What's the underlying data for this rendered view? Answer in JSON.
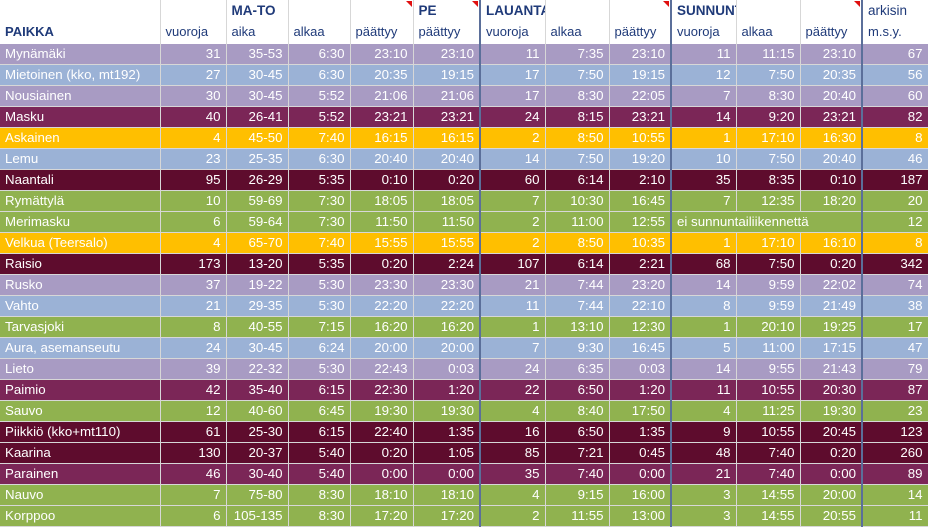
{
  "header": {
    "row1": [
      "",
      "",
      "MA-TO",
      "",
      "",
      "PE",
      "LAUANTAI",
      "",
      "",
      "SUNNUNTAI",
      "",
      "",
      "arkisin"
    ],
    "row2": [
      "PAIKKA",
      "vuoroja",
      "aika",
      "alkaa",
      "päättyy",
      "päättyy",
      "vuoroja",
      "alkaa",
      "päättyy",
      "vuoroja",
      "alkaa",
      "päättyy",
      "m.s.y."
    ]
  },
  "colors": {
    "lavender": "#a89bc3",
    "blue": "#9bb2d6",
    "plum": "#7b2657",
    "orange": "#ffbf00",
    "maroon": "#5e0c2d",
    "green": "#90b24f",
    "header_text": "#1f3a79"
  },
  "rows": [
    {
      "color": "lavender",
      "cells": [
        "Mynämäki",
        "31",
        "35-53",
        "6:30",
        "23:10",
        "23:10",
        "11",
        "7:35",
        "23:10",
        "11",
        "11:15",
        "23:10",
        "67"
      ]
    },
    {
      "color": "blue",
      "cells": [
        "Mietoinen (kko, mt192)",
        "27",
        "30-45",
        "6:30",
        "20:35",
        "19:15",
        "17",
        "7:50",
        "19:15",
        "12",
        "7:50",
        "20:35",
        "56"
      ]
    },
    {
      "color": "lavender",
      "cells": [
        "Nousiainen",
        "30",
        "30-45",
        "5:52",
        "21:06",
        "21:06",
        "17",
        "8:30",
        "22:05",
        "7",
        "8:30",
        "20:40",
        "60"
      ]
    },
    {
      "color": "plum",
      "cells": [
        "Masku",
        "40",
        "26-41",
        "5:52",
        "23:21",
        "23:21",
        "24",
        "8:15",
        "23:21",
        "14",
        "9:20",
        "23:21",
        "82"
      ]
    },
    {
      "color": "orange",
      "cells": [
        "Askainen",
        "4",
        "45-50",
        "7:40",
        "16:15",
        "16:15",
        "2",
        "8:50",
        "10:55",
        "1",
        "17:10",
        "16:30",
        "8"
      ]
    },
    {
      "color": "blue",
      "cells": [
        "Lemu",
        "23",
        "25-35",
        "6:30",
        "20:40",
        "20:40",
        "14",
        "7:50",
        "19:20",
        "10",
        "7:50",
        "20:40",
        "46"
      ]
    },
    {
      "color": "maroon",
      "cells": [
        "Naantali",
        "95",
        "26-29",
        "5:35",
        "0:10",
        "0:20",
        "60",
        "6:14",
        "2:10",
        "35",
        "8:35",
        "0:10",
        "187"
      ]
    },
    {
      "color": "green",
      "cells": [
        "Rymättylä",
        "10",
        "59-69",
        "7:30",
        "18:05",
        "18:05",
        "7",
        "10:30",
        "16:45",
        "7",
        "12:35",
        "18:20",
        "20"
      ]
    },
    {
      "color": "green",
      "span_text": "ei sunnuntailiikennettä",
      "cells": [
        "Merimasku",
        "6",
        "59-64",
        "7:30",
        "11:50",
        "11:50",
        "2",
        "11:00",
        "12:55",
        "",
        "",
        "",
        "12"
      ]
    },
    {
      "color": "orange",
      "cells": [
        "Velkua (Teersalo)",
        "4",
        "65-70",
        "7:40",
        "15:55",
        "15:55",
        "2",
        "8:50",
        "10:35",
        "1",
        "17:10",
        "16:10",
        "8"
      ]
    },
    {
      "color": "maroon",
      "cells": [
        "Raisio",
        "173",
        "13-20",
        "5:35",
        "0:20",
        "2:24",
        "107",
        "6:14",
        "2:21",
        "68",
        "7:50",
        "0:20",
        "342"
      ]
    },
    {
      "color": "lavender",
      "cells": [
        "Rusko",
        "37",
        "19-22",
        "5:30",
        "23:30",
        "23:30",
        "21",
        "7:44",
        "23:20",
        "14",
        "9:59",
        "22:02",
        "74"
      ]
    },
    {
      "color": "blue",
      "cells": [
        "Vahto",
        "21",
        "29-35",
        "5:30",
        "22:20",
        "22:20",
        "11",
        "7:44",
        "22:10",
        "8",
        "9:59",
        "21:49",
        "38"
      ]
    },
    {
      "color": "green",
      "cells": [
        "Tarvasjoki",
        "8",
        "40-55",
        "7:15",
        "16:20",
        "16:20",
        "1",
        "13:10",
        "12:30",
        "1",
        "20:10",
        "19:25",
        "17"
      ]
    },
    {
      "color": "blue",
      "cells": [
        "Aura, asemanseutu",
        "24",
        "30-45",
        "6:24",
        "20:00",
        "20:00",
        "7",
        "9:30",
        "16:45",
        "5",
        "11:00",
        "17:15",
        "47"
      ]
    },
    {
      "color": "lavender",
      "cells": [
        "Lieto",
        "39",
        "22-32",
        "5:30",
        "22:43",
        "0:03",
        "24",
        "6:35",
        "0:03",
        "14",
        "9:55",
        "21:43",
        "79"
      ]
    },
    {
      "color": "plum",
      "cells": [
        "Paimio",
        "42",
        "35-40",
        "6:15",
        "22:30",
        "1:20",
        "22",
        "6:50",
        "1:20",
        "11",
        "10:55",
        "20:30",
        "87"
      ]
    },
    {
      "color": "green",
      "cells": [
        "Sauvo",
        "12",
        "40-60",
        "6:45",
        "19:30",
        "19:30",
        "4",
        "8:40",
        "17:50",
        "4",
        "11:25",
        "19:30",
        "23"
      ]
    },
    {
      "color": "maroon",
      "cells": [
        "Piikkiö (kko+mt110)",
        "61",
        "25-30",
        "6:15",
        "22:40",
        "1:35",
        "16",
        "6:50",
        "1:35",
        "9",
        "10:55",
        "20:45",
        "123"
      ]
    },
    {
      "color": "maroon",
      "cells": [
        "Kaarina",
        "130",
        "20-37",
        "5:40",
        "0:20",
        "1:05",
        "85",
        "7:21",
        "0:45",
        "48",
        "7:40",
        "0:20",
        "260"
      ]
    },
    {
      "color": "plum",
      "cells": [
        "Parainen",
        "46",
        "30-40",
        "5:40",
        "0:00",
        "0:00",
        "35",
        "7:40",
        "0:00",
        "21",
        "7:40",
        "0:00",
        "89"
      ]
    },
    {
      "color": "green",
      "cells": [
        "Nauvo",
        "7",
        "75-80",
        "8:30",
        "18:10",
        "18:10",
        "4",
        "9:15",
        "16:00",
        "3",
        "14:55",
        "20:00",
        "14"
      ]
    },
    {
      "color": "green",
      "cells": [
        "Korppoo",
        "6",
        "105-135",
        "8:30",
        "17:20",
        "17:20",
        "2",
        "11:55",
        "13:00",
        "3",
        "14:55",
        "20:55",
        "11"
      ]
    }
  ]
}
